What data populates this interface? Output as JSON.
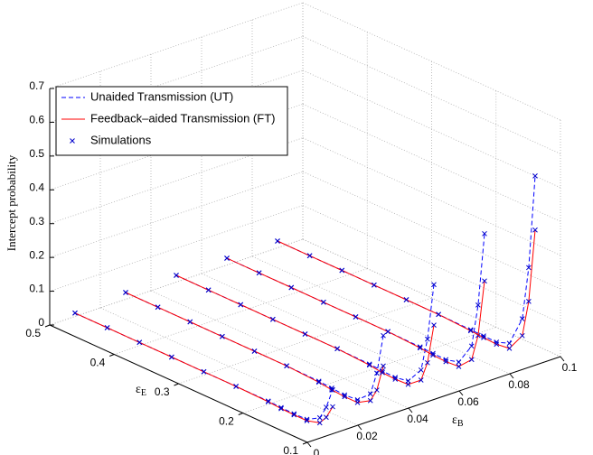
{
  "chart_data": {
    "type": "line3d",
    "zlabel": "Intercept probability",
    "xlabel": {
      "symbol": "ε",
      "subscript": "B"
    },
    "ylabel": {
      "symbol": "ε",
      "subscript": "E"
    },
    "xlim": [
      0,
      0.1
    ],
    "xticks": [
      0,
      0.02,
      0.04,
      0.06,
      0.08,
      0.1
    ],
    "ylim": [
      0.1,
      0.5
    ],
    "yticks": [
      0.1,
      0.2,
      0.3,
      0.4,
      0.5
    ],
    "zlim": [
      0,
      0.7
    ],
    "zticks": [
      0,
      0.1,
      0.2,
      0.3,
      0.4,
      0.5,
      0.6,
      0.7
    ],
    "grid": true,
    "legend": "upper left",
    "eps_B": [
      0.01,
      0.03,
      0.05,
      0.07,
      0.09
    ],
    "y": [
      0.5,
      0.45,
      0.4,
      0.35,
      0.3,
      0.25,
      0.2,
      0.18,
      0.16,
      0.14,
      0.12,
      0.11,
      0.1
    ],
    "series": [
      {
        "name": "Unaided Transmission (UT)",
        "color": "#0000ff",
        "style": "dashed",
        "values": [
          [
            0.01,
            0.01,
            0.01,
            0.01,
            0.01,
            0.01,
            0.01,
            0.008,
            0.007,
            0.008,
            0.03,
            0.07,
            0.13
          ],
          [
            0.02,
            0.02,
            0.02,
            0.02,
            0.02,
            0.02,
            0.018,
            0.015,
            0.012,
            0.015,
            0.05,
            0.12,
            0.24
          ],
          [
            0.02,
            0.02,
            0.02,
            0.02,
            0.02,
            0.02,
            0.018,
            0.015,
            0.013,
            0.02,
            0.07,
            0.17,
            0.34
          ],
          [
            0.02,
            0.02,
            0.02,
            0.02,
            0.02,
            0.02,
            0.018,
            0.016,
            0.015,
            0.025,
            0.09,
            0.22,
            0.44
          ],
          [
            0.02,
            0.02,
            0.02,
            0.02,
            0.02,
            0.02,
            0.018,
            0.017,
            0.016,
            0.03,
            0.12,
            0.28,
            0.56
          ]
        ]
      },
      {
        "name": "Feedback–aided Transmission (FT)",
        "color": "#ff0000",
        "style": "solid",
        "values": [
          [
            0.01,
            0.01,
            0.01,
            0.01,
            0.01,
            0.01,
            0.008,
            0.005,
            0.004,
            0.004,
            0.015,
            0.04,
            0.08
          ],
          [
            0.02,
            0.02,
            0.02,
            0.02,
            0.02,
            0.02,
            0.015,
            0.01,
            0.007,
            0.007,
            0.03,
            0.07,
            0.15
          ],
          [
            0.02,
            0.02,
            0.02,
            0.02,
            0.02,
            0.02,
            0.015,
            0.01,
            0.008,
            0.01,
            0.04,
            0.1,
            0.22
          ],
          [
            0.02,
            0.02,
            0.02,
            0.02,
            0.02,
            0.02,
            0.015,
            0.011,
            0.009,
            0.012,
            0.05,
            0.13,
            0.3
          ],
          [
            0.02,
            0.02,
            0.02,
            0.02,
            0.02,
            0.02,
            0.015,
            0.012,
            0.01,
            0.015,
            0.07,
            0.18,
            0.4
          ]
        ]
      },
      {
        "name": "Simulations",
        "color": "#0000cc",
        "style": "marker"
      }
    ]
  }
}
